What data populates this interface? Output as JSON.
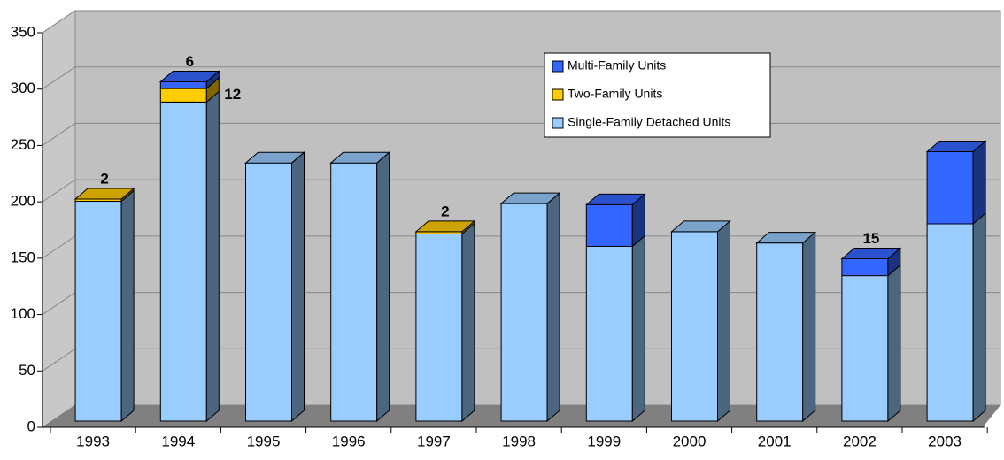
{
  "chart_data": {
    "type": "bar",
    "stacked": true,
    "categories": [
      "1993",
      "1994",
      "1995",
      "1996",
      "1997",
      "1998",
      "1999",
      "2000",
      "2001",
      "2002",
      "2003"
    ],
    "series": [
      {
        "name": "Single-Family Detached Units",
        "color": "#99ccff",
        "values": [
          195,
          283,
          229,
          229,
          166,
          193,
          155,
          168,
          158,
          129,
          175
        ]
      },
      {
        "name": "Two-Family Units",
        "color": "#ffcc00",
        "values": [
          2,
          12,
          null,
          null,
          2,
          null,
          null,
          null,
          null,
          null,
          null
        ]
      },
      {
        "name": "Multi-Family Units",
        "color": "#3366ff",
        "values": [
          null,
          6,
          null,
          null,
          null,
          null,
          37,
          null,
          null,
          15,
          64
        ]
      }
    ],
    "ylim": [
      0,
      350
    ],
    "yticks": [
      0,
      50,
      100,
      150,
      200,
      250,
      300,
      350
    ],
    "grid": true
  }
}
